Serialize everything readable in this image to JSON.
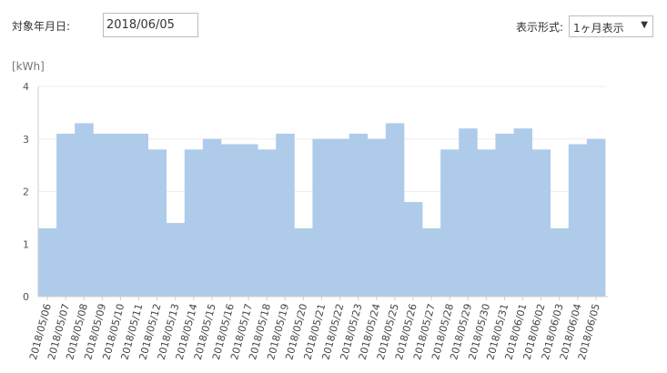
{
  "controls": {
    "date_label": "対象年月日:",
    "date_value": "2018/06/05",
    "format_label": "表示形式:",
    "format_value": "1ヶ月表示"
  },
  "chart_data": {
    "type": "bar",
    "title": "",
    "ylabel": "[kWh]",
    "ylim": [
      0,
      4
    ],
    "yticks": [
      0,
      1,
      2,
      3,
      4
    ],
    "bar_color": "#aecbea",
    "categories": [
      "2018/05/06",
      "2018/05/07",
      "2018/05/08",
      "2018/05/09",
      "2018/05/10",
      "2018/05/11",
      "2018/05/12",
      "2018/05/13",
      "2018/05/14",
      "2018/05/15",
      "2018/05/16",
      "2018/05/17",
      "2018/05/18",
      "2018/05/19",
      "2018/05/20",
      "2018/05/21",
      "2018/05/22",
      "2018/05/23",
      "2018/05/24",
      "2018/05/25",
      "2018/05/26",
      "2018/05/27",
      "2018/05/28",
      "2018/05/29",
      "2018/05/30",
      "2018/05/31",
      "2018/06/01",
      "2018/06/02",
      "2018/06/03",
      "2018/06/04",
      "2018/06/05"
    ],
    "values": [
      1.3,
      3.1,
      3.3,
      3.1,
      3.1,
      3.1,
      2.8,
      1.4,
      2.8,
      3.0,
      2.9,
      2.9,
      2.8,
      3.1,
      1.3,
      3.0,
      3.0,
      3.1,
      3.0,
      3.3,
      1.8,
      1.3,
      2.8,
      3.2,
      2.8,
      3.1,
      3.2,
      2.8,
      1.3,
      2.9,
      3.0
    ]
  }
}
